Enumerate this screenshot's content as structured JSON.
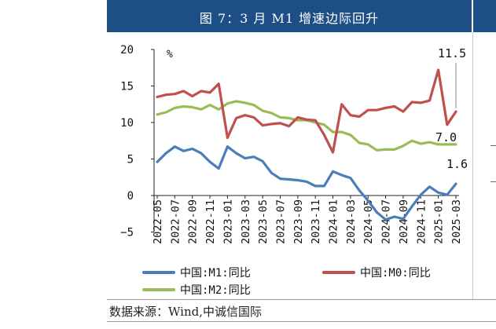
{
  "header": {
    "title": "图 7：3 月 M1 增速边际回升"
  },
  "footer": {
    "source": "数据来源：Wind,中诚信国际"
  },
  "chart_data": {
    "type": "line",
    "title": "",
    "xlabel": "",
    "ylabel": "%",
    "ylim": [
      -5,
      20
    ],
    "yticks": [
      -5,
      0,
      5,
      10,
      15,
      20
    ],
    "grid": false,
    "legend_position": "bottom",
    "x": [
      "2022-05",
      "2022-06",
      "2022-07",
      "2022-08",
      "2022-09",
      "2022-10",
      "2022-11",
      "2022-12",
      "2023-01",
      "2023-02",
      "2023-03",
      "2023-04",
      "2023-05",
      "2023-06",
      "2023-07",
      "2023-08",
      "2023-09",
      "2023-10",
      "2023-11",
      "2023-12",
      "2024-01",
      "2024-02",
      "2024-03",
      "2024-04",
      "2024-05",
      "2024-06",
      "2024-07",
      "2024-08",
      "2024-09",
      "2024-10",
      "2024-11",
      "2024-12",
      "2025-01",
      "2025-02",
      "2025-03"
    ],
    "x_tick_labels": [
      "2022-05",
      "2022-07",
      "2022-09",
      "2022-11",
      "2023-01",
      "2023-03",
      "2023-05",
      "2023-07",
      "2023-09",
      "2023-11",
      "2024-01",
      "2024-03",
      "2024-05",
      "2024-07",
      "2024-09",
      "2024-11",
      "2025-01",
      "2025-03"
    ],
    "series": [
      {
        "name": "中国:M1:同比",
        "color": "#4a7ebb",
        "values": [
          4.6,
          5.8,
          6.7,
          6.1,
          6.4,
          5.8,
          4.6,
          3.7,
          6.7,
          5.8,
          5.1,
          5.3,
          4.7,
          3.1,
          2.3,
          2.2,
          2.1,
          1.9,
          1.3,
          1.3,
          3.3,
          2.8,
          2.4,
          0.7,
          -0.7,
          -2.3,
          -3.3,
          -2.9,
          -3.2,
          -1.5,
          0.1,
          1.2,
          0.4,
          0.1,
          1.6
        ]
      },
      {
        "name": "中国:M0:同比",
        "color": "#c0504d",
        "values": [
          13.5,
          13.8,
          13.9,
          14.3,
          13.6,
          14.3,
          14.1,
          15.3,
          7.9,
          10.6,
          11.0,
          10.7,
          9.6,
          9.8,
          9.9,
          9.5,
          10.7,
          10.4,
          10.3,
          8.3,
          5.9,
          12.5,
          11.0,
          10.8,
          11.7,
          11.7,
          12.0,
          12.2,
          11.5,
          12.8,
          12.7,
          13.0,
          17.2,
          9.7,
          11.5
        ]
      },
      {
        "name": "中国:M2:同比",
        "color": "#9bbb59",
        "values": [
          11.1,
          11.4,
          12.0,
          12.2,
          12.1,
          11.8,
          12.4,
          11.8,
          12.6,
          12.9,
          12.7,
          12.4,
          11.6,
          11.3,
          10.7,
          10.6,
          10.3,
          10.3,
          10.0,
          9.7,
          8.7,
          8.7,
          8.3,
          7.2,
          7.0,
          6.2,
          6.3,
          6.3,
          6.8,
          7.5,
          7.1,
          7.3,
          7.0,
          7.0,
          7.0
        ]
      }
    ],
    "annotations": [
      {
        "text": "11.5",
        "series": 1,
        "index": 34
      },
      {
        "text": "7.0",
        "series": 2,
        "index": 34
      },
      {
        "text": "1.6",
        "series": 0,
        "index": 34
      }
    ]
  }
}
